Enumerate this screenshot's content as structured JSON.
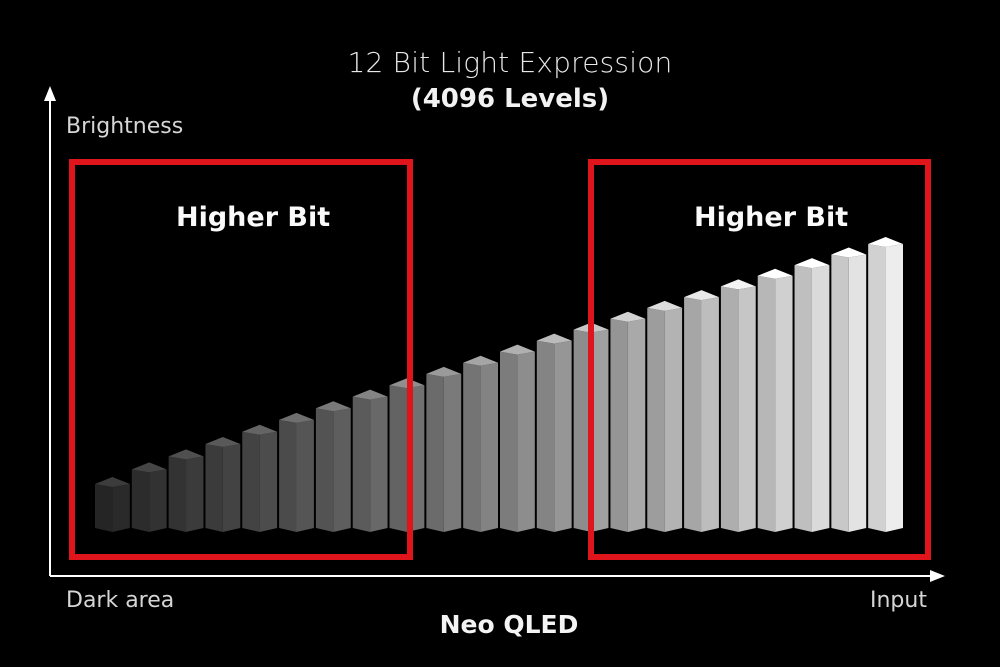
{
  "title": "12 Bit Light Expression",
  "subtitle": "(4096 Levels)",
  "y_axis_label": "Brightness",
  "x_axis_left_label": "Dark area",
  "x_axis_right_label": "Input",
  "footer_label": "Neo QLED",
  "highlight_boxes": [
    {
      "label": "Higher Bit",
      "color": "#e0141b"
    },
    {
      "label": "Higher Bit",
      "color": "#e0141b"
    }
  ],
  "colors": {
    "background": "#000000",
    "axis": "#ffffff",
    "highlight": "#e0141b"
  },
  "bars": {
    "count": 22,
    "style": "stepped 3D bars, brightness increasing from dark gray (left) to white (right)"
  }
}
